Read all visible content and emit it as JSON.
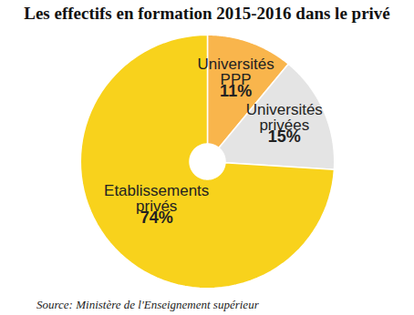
{
  "chart_data": {
    "type": "pie",
    "title": "Les effectifs en formation 2015-2016 dans le privé",
    "categories": [
      "Universités PPP",
      "Universités privées",
      "Etablissements privés"
    ],
    "values": [
      11,
      15,
      74
    ],
    "value_labels": [
      "11%",
      "15%",
      "74%"
    ],
    "colors": [
      "#f9b54c",
      "#e4e4e4",
      "#f8d21c"
    ],
    "data_labels": true,
    "source": "Source: Ministère de l'Enseignement supérieur"
  }
}
